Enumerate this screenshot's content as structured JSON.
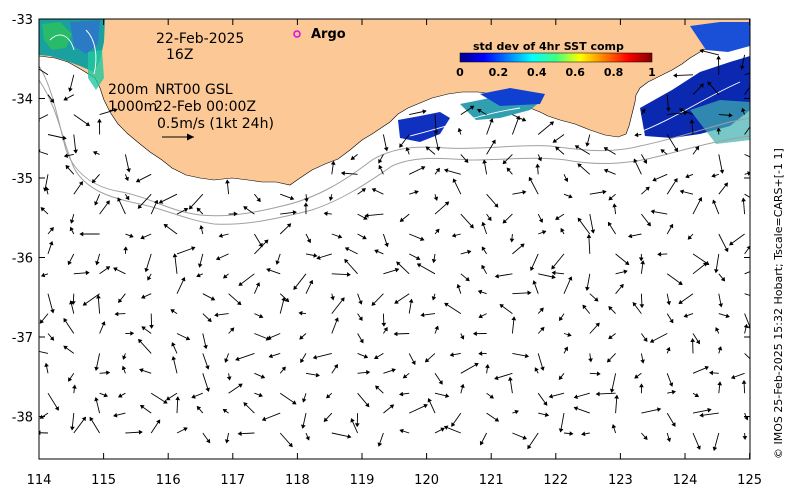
{
  "map": {
    "date": "22-Feb-2025",
    "hour": "16Z",
    "iso_200m": "200m",
    "iso_1000m": "1000m",
    "product": "NRT00 GSL",
    "valid_time": "22-Feb 00:00Z",
    "scale_label": "0.5m/s (1kt 24h)",
    "argo_label": "Argo",
    "credit": "© IMOS 25-Feb-2025 15:32 Hobart; Tscale=CARS+[-1 1]",
    "x_ticks": [
      "114",
      "115",
      "116",
      "117",
      "118",
      "119",
      "120",
      "121",
      "122",
      "123",
      "124",
      "125"
    ],
    "y_ticks": [
      "-33",
      "-34",
      "-35",
      "-36",
      "-37",
      "-38"
    ],
    "colorbar": {
      "title": "std dev of 4hr SST comp",
      "ticks": [
        "0",
        "0.2",
        "0.4",
        "0.6",
        "0.8",
        "1"
      ]
    },
    "colors": {
      "land": "#fcc896",
      "ocean": "#ffffff",
      "argo": "#e600e6",
      "bathy": "#a0a0a0"
    }
  }
}
